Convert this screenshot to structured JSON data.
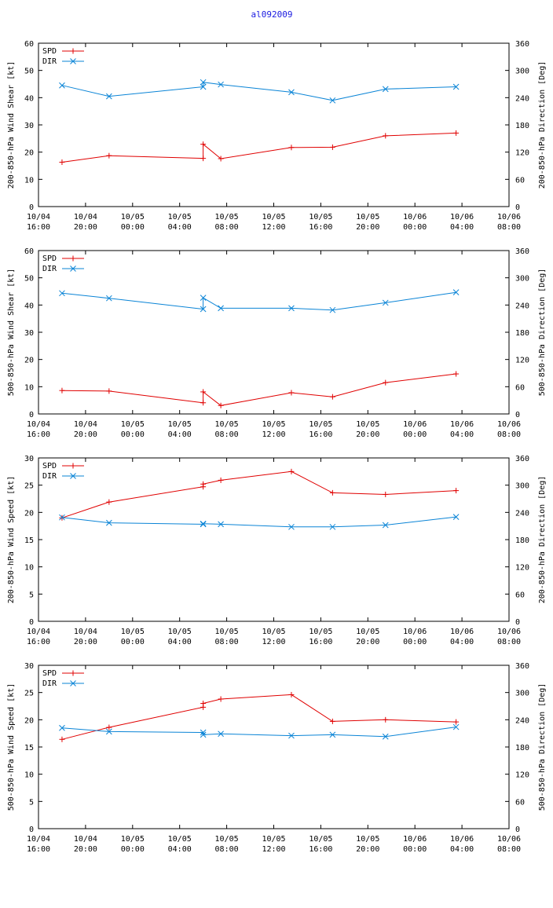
{
  "title": "al092009",
  "colors": {
    "spd": "#e00000",
    "dir": "#0a84d6",
    "axis": "#000000"
  },
  "x_ticks": [
    {
      "day": "10/04",
      "time": "16:00"
    },
    {
      "day": "10/04",
      "time": "20:00"
    },
    {
      "day": "10/05",
      "time": "00:00"
    },
    {
      "day": "10/05",
      "time": "04:00"
    },
    {
      "day": "10/05",
      "time": "08:00"
    },
    {
      "day": "10/05",
      "time": "12:00"
    },
    {
      "day": "10/05",
      "time": "16:00"
    },
    {
      "day": "10/05",
      "time": "20:00"
    },
    {
      "day": "10/06",
      "time": "00:00"
    },
    {
      "day": "10/06",
      "time": "04:00"
    },
    {
      "day": "10/06",
      "time": "08:00"
    }
  ],
  "chart_data": [
    {
      "type": "line",
      "ylabel": "200-850-hPa Wind Shear [kt]",
      "y2label": "200-850-hPa Direction [Deg]",
      "ylim": [
        0,
        60
      ],
      "y2lim": [
        0,
        360
      ],
      "yticks": [
        0,
        10,
        20,
        30,
        40,
        50,
        60
      ],
      "y2ticks": [
        0,
        60,
        120,
        180,
        240,
        300,
        360
      ],
      "xlim": [
        0,
        40
      ],
      "legend": "top-left",
      "series": [
        {
          "name": "SPD",
          "axis": "left",
          "x": [
            2,
            6,
            14,
            14,
            15.5,
            21.5,
            25,
            29.5,
            35.5
          ],
          "values": [
            16.3,
            18.7,
            17.7,
            22.9,
            17.6,
            21.7,
            21.8,
            26.0,
            27.0
          ]
        },
        {
          "name": "DIR",
          "axis": "right",
          "x": [
            2,
            6,
            14,
            14,
            15.5,
            21.5,
            25,
            29.5,
            35.5
          ],
          "values": [
            267,
            243,
            264,
            274,
            269,
            252,
            234,
            259,
            264
          ]
        }
      ]
    },
    {
      "type": "line",
      "ylabel": "500-850-hPa Wind Shear [kt]",
      "y2label": "500-850-hPa Direction [Deg]",
      "ylim": [
        0,
        60
      ],
      "y2lim": [
        0,
        360
      ],
      "yticks": [
        0,
        10,
        20,
        30,
        40,
        50,
        60
      ],
      "y2ticks": [
        0,
        60,
        120,
        180,
        240,
        300,
        360
      ],
      "xlim": [
        0,
        40
      ],
      "legend": "top-left",
      "series": [
        {
          "name": "SPD",
          "axis": "left",
          "x": [
            2,
            6,
            14,
            14,
            15.5,
            21.5,
            25,
            29.5,
            35.5
          ],
          "values": [
            8.6,
            8.4,
            4.1,
            8.1,
            3.1,
            7.8,
            6.3,
            11.5,
            14.7
          ]
        },
        {
          "name": "DIR",
          "axis": "right",
          "x": [
            2,
            6,
            14,
            14,
            15.5,
            21.5,
            25,
            29.5,
            35.5
          ],
          "values": [
            266,
            255,
            231,
            256,
            233,
            233,
            229,
            245,
            268
          ]
        }
      ]
    },
    {
      "type": "line",
      "ylabel": "200-850-hPa Wind Speed [kt]",
      "y2label": "200-850-hPa Direction [Deg]",
      "ylim": [
        0,
        30
      ],
      "y2lim": [
        0,
        360
      ],
      "yticks": [
        0,
        5,
        10,
        15,
        20,
        25,
        30
      ],
      "y2ticks": [
        0,
        60,
        120,
        180,
        240,
        300,
        360
      ],
      "xlim": [
        0,
        40
      ],
      "legend": "top-left",
      "series": [
        {
          "name": "SPD",
          "axis": "left",
          "x": [
            2,
            6,
            14,
            14,
            15.5,
            21.5,
            25,
            29.5,
            35.5
          ],
          "values": [
            19.0,
            21.9,
            24.7,
            25.2,
            25.9,
            27.5,
            23.6,
            23.3,
            24.0
          ]
        },
        {
          "name": "DIR",
          "axis": "right",
          "x": [
            2,
            6,
            14,
            14,
            15.5,
            21.5,
            25,
            29.5,
            35.5
          ],
          "values": [
            229,
            217,
            214,
            215,
            214,
            208,
            208,
            212,
            230
          ]
        }
      ]
    },
    {
      "type": "line",
      "ylabel": "500-850-hPa Wind Speed [kt]",
      "y2label": "500-850-hPa Direction [Deg]",
      "ylim": [
        0,
        30
      ],
      "y2lim": [
        0,
        360
      ],
      "yticks": [
        0,
        5,
        10,
        15,
        20,
        25,
        30
      ],
      "y2ticks": [
        0,
        60,
        120,
        180,
        240,
        300,
        360
      ],
      "xlim": [
        0,
        40
      ],
      "legend": "top-left",
      "series": [
        {
          "name": "SPD",
          "axis": "left",
          "x": [
            2,
            6,
            14,
            14,
            15.5,
            21.5,
            25,
            29.5,
            35.5
          ],
          "values": [
            16.4,
            18.6,
            22.3,
            23.0,
            23.8,
            24.6,
            19.7,
            20.0,
            19.6
          ]
        },
        {
          "name": "DIR",
          "axis": "right",
          "x": [
            2,
            6,
            14,
            14,
            15.5,
            21.5,
            25,
            29.5,
            35.5
          ],
          "values": [
            222,
            214,
            212,
            207,
            209,
            205,
            207,
            203,
            224
          ]
        }
      ]
    }
  ]
}
